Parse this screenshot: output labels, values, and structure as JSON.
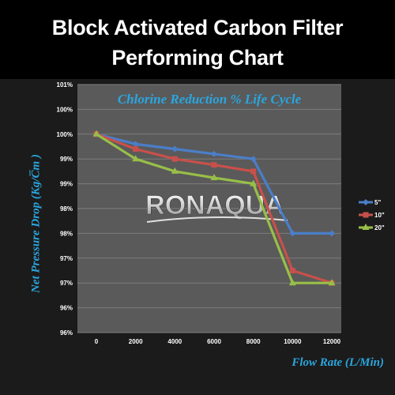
{
  "header": {
    "title_line1": "Block Activated Carbon Filter",
    "title_line2": "Performing Chart"
  },
  "watermark": "RONAQUA",
  "chart_data": {
    "type": "line",
    "title": "Chlorine Reduction % Life Cycle",
    "xlabel": "Flow Rate (L/Min)",
    "ylabel": "Net Pressure Drop (Kg/C̅m )",
    "x": [
      0,
      2000,
      4000,
      6000,
      8000,
      10000,
      12000
    ],
    "y_ticks": [
      "96%",
      "96%",
      "97%",
      "97%",
      "98%",
      "98%",
      "99%",
      "99%",
      "100%",
      "100%",
      "101%"
    ],
    "ylim": [
      96,
      101
    ],
    "grid": true,
    "legend_position": "right",
    "series": [
      {
        "name": "5\"",
        "color": "#4a7ec9",
        "marker": "diamond",
        "values": [
          100.0,
          99.8,
          99.7,
          99.6,
          99.5,
          98.0,
          98.0
        ]
      },
      {
        "name": "10\"",
        "color": "#c8504b",
        "marker": "square",
        "values": [
          100.0,
          99.7,
          99.5,
          99.38,
          99.25,
          97.25,
          97.0
        ]
      },
      {
        "name": "20\"",
        "color": "#98bf48",
        "marker": "triangle",
        "values": [
          100.0,
          99.5,
          99.25,
          99.12,
          99.0,
          97.0,
          97.0
        ]
      }
    ]
  }
}
